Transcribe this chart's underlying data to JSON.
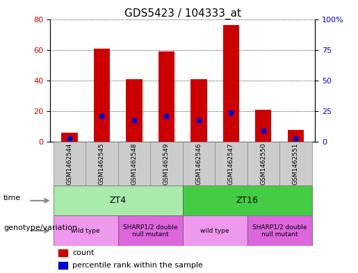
{
  "title": "GDS5423 / 104333_at",
  "samples": [
    "GSM1462544",
    "GSM1462545",
    "GSM1462548",
    "GSM1462549",
    "GSM1462546",
    "GSM1462547",
    "GSM1462550",
    "GSM1462551"
  ],
  "counts": [
    6,
    61,
    41,
    59,
    41,
    76,
    21,
    8
  ],
  "percentiles": [
    3,
    21,
    18,
    21,
    18,
    24,
    9,
    3
  ],
  "left_ylim": [
    0,
    80
  ],
  "right_ylim": [
    0,
    100
  ],
  "left_yticks": [
    0,
    20,
    40,
    60,
    80
  ],
  "right_yticks": [
    0,
    25,
    50,
    75,
    100
  ],
  "right_yticklabels": [
    "0",
    "25",
    "50",
    "75",
    "100%"
  ],
  "bar_color": "#cc0000",
  "percentile_color": "#0000cc",
  "bar_width": 0.5,
  "time_groups": [
    {
      "label": "ZT4",
      "start": 0,
      "end": 3,
      "color": "#aaeaaa"
    },
    {
      "label": "ZT16",
      "start": 4,
      "end": 7,
      "color": "#44cc44"
    }
  ],
  "genotype_groups": [
    {
      "label": "wild type",
      "start": 0,
      "end": 1,
      "color": "#ee99ee"
    },
    {
      "label": "SHARP1/2 double\nnull mutant",
      "start": 2,
      "end": 3,
      "color": "#dd66dd"
    },
    {
      "label": "wild type",
      "start": 4,
      "end": 5,
      "color": "#ee99ee"
    },
    {
      "label": "SHARP1/2 double\nnull mutant",
      "start": 6,
      "end": 7,
      "color": "#dd66dd"
    }
  ],
  "bg_color": "#cccccc",
  "left_axis_color": "#cc0000",
  "right_axis_color": "#0000cc",
  "time_label": "time",
  "genotype_label": "genotype/variation"
}
